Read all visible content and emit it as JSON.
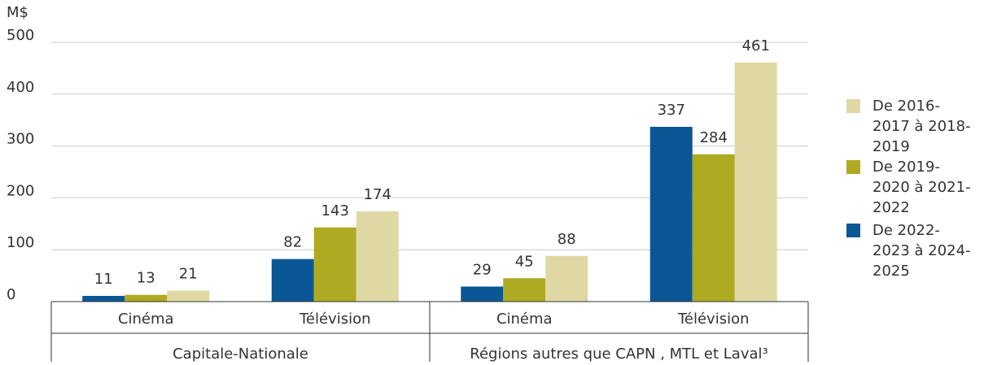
{
  "chart_data": {
    "type": "bar",
    "y_unit": "M$",
    "categories": [
      "Cinéma",
      "Télévision",
      "Cinéma",
      "Télévision"
    ],
    "groups": [
      "Capitale-Nationale",
      "Régions autres que CAPN , MTL et Laval³"
    ],
    "series": [
      {
        "name": "De 2022-2023 à 2024-2025",
        "color": "#0b5796",
        "values": [
          11,
          82,
          29,
          337
        ]
      },
      {
        "name": "De 2019-2020 à 2021-2022",
        "color": "#aeaa22",
        "values": [
          13,
          143,
          45,
          284
        ]
      },
      {
        "name": "De 2016-2017 à 2018-2019",
        "color": "#e0d8a4",
        "values": [
          21,
          174,
          88,
          461
        ]
      }
    ],
    "ylim": [
      0,
      500
    ],
    "yticks": [
      0,
      100,
      200,
      300,
      400,
      500
    ],
    "grid": true,
    "legend": "right"
  }
}
